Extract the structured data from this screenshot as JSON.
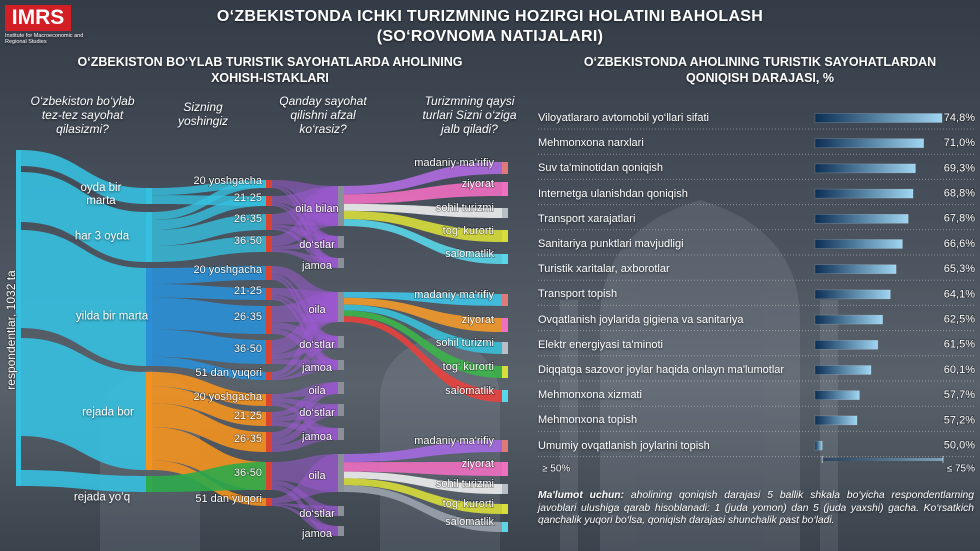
{
  "header": {
    "logo": "IMRS",
    "institute": "Institute for Macroeconomic and Regional Studies",
    "title": "O‘ZBEKISTONDA ICHKI TURIZMNING HOZIRGI HOLATINI BAHOLASH",
    "subtitle": "(SO‘ROVNOMA NATIJALARI)"
  },
  "sankey": {
    "title": "O‘ZBEKISTON BO‘YLAB TURISTIK SAYOHATLARDA AHOLINING XOHISH-ISTAKLARI",
    "axis_label": "respondentlar, 1032 ta",
    "questions": [
      "O‘zbekiston bo‘ylab tez-tez sayohat qilasizmi?",
      "Sizning yoshingiz",
      "Qanday sayohat qilishni afzal ko‘rasiz?",
      "Turizmning qaysi turlari Sizni o‘ziga jalb qiladi?"
    ],
    "frequency": [
      "oyda bir marta",
      "har 3 oyda",
      "yilda bir marta",
      "rejada bor",
      "rejada yo‘q"
    ],
    "age_groups": [
      [
        "20 yoshgacha",
        "21-25",
        "26-35",
        "36-50"
      ],
      [
        "20 yoshgacha",
        "21-25",
        "26-35",
        "36-50",
        "51 dan yuqori"
      ],
      [
        "20 yoshgacha",
        "21-25",
        "26-35",
        "36-50",
        "51 dan yuqori"
      ]
    ],
    "companions": [
      [
        "oila bilan",
        "do‘stlar",
        "jamoa"
      ],
      [
        "oila",
        "do‘stlar",
        "jamoa"
      ],
      [
        "oila",
        "do‘stlar",
        "jamoa"
      ],
      [
        "oila",
        "do‘stlar",
        "jamoa"
      ]
    ],
    "tourism_types": [
      [
        "madaniy-ma'rifiy",
        "ziyorat",
        "sohil turizmi",
        "tog‘ kurorti",
        "salomatlik"
      ],
      [
        "madaniy-ma'rifiy",
        "ziyorat",
        "sohil turizmi",
        "tog‘ kurorti",
        "salomatlik"
      ],
      [
        "madaniy-ma'rifiy",
        "ziyorat",
        "sohil turizmi",
        "tog‘ kurorti",
        "salomatlik"
      ]
    ]
  },
  "chart_data": {
    "type": "hbar",
    "title": "O‘ZBEKISTONDA AHOLINING TURISTIK SAYOHATLARDAN QONIQISH DARAJASI, %",
    "categories": [
      "Viloyatlararo avtomobil yo‘llari sifati",
      "Mehmonxona narxlari",
      "Suv ta'minotidan qoniqish",
      "Internetga ulanishdan qoniqish",
      "Transport xarajatlari",
      "Sanitariya punktlari mavjudligi",
      "Turistik xaritalar, axborotlar",
      "Transport topish",
      "Ovqatlanish joylarida gigiena va sanitariya",
      "Elektr energiyasi ta'minoti",
      "Diqqatga sazovor joylar haqida onlayn ma'lumotlar",
      "Mehmonxona xizmati",
      "Mehmonxona topish",
      "Umumiy ovqatlanish joylarini topish"
    ],
    "values": [
      74.8,
      71.0,
      69.3,
      68.8,
      67.8,
      66.6,
      65.3,
      64.1,
      62.5,
      61.5,
      60.1,
      57.7,
      57.2,
      50.0
    ],
    "value_labels": [
      "74,8%",
      "71,0%",
      "69,3%",
      "68,8%",
      "67,8%",
      "66,6%",
      "65,3%",
      "64,1%",
      "62,5%",
      "61,5%",
      "60,1%",
      "57,7%",
      "57,2%",
      "50,0%"
    ],
    "xlim": [
      48.5,
      75
    ],
    "color_scale": [
      {
        "value": 50,
        "label": "≥ 50%"
      },
      {
        "value": 75,
        "label": "≤ 75%"
      }
    ],
    "colors": [
      "#0d2f55",
      "#9fd6f2"
    ]
  },
  "footnote": {
    "label": "Ma'lumot uchun:",
    "text": "aholining qoniqish darajasi 5 ballik shkala bo‘yicha respondentlarning javoblari ulushiga qarab hisoblanadi: 1 (juda yomon) dan 5 (juda yaxshi) gacha. Ko‘rsatkich qanchalik yuqori bo‘lsa, qoniqish darajasi shunchalik past bo‘ladi."
  }
}
